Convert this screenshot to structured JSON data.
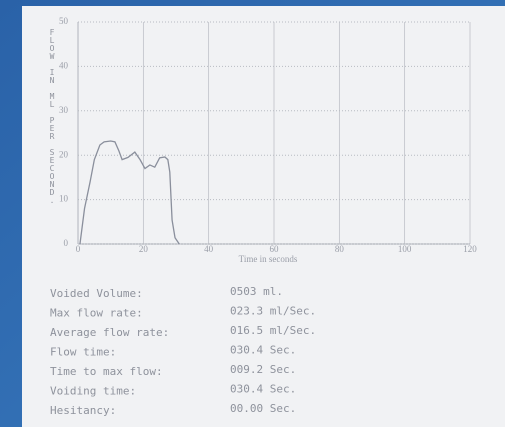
{
  "chart_data": {
    "type": "line",
    "y_label": "FLOW IN ML PER SECOND.",
    "x_label": "Time in seconds",
    "xlim": [
      0,
      120
    ],
    "xticks": [
      0,
      20,
      40,
      60,
      80,
      100,
      120
    ],
    "ylim": [
      0,
      50
    ],
    "yticks": [
      0,
      10,
      20,
      30,
      40,
      50
    ],
    "grid": true,
    "series": [
      {
        "color": "#8a8f9c",
        "x": [
          0.6,
          2,
          3.7,
          5,
          6.7,
          8,
          10,
          11.3,
          12.5,
          13.5,
          15.3,
          17.4,
          19,
          20.5,
          22,
          23.5,
          25,
          26.6,
          27.5,
          28.1,
          28.8,
          29.7,
          31
        ],
        "values": [
          0,
          8,
          14,
          19,
          22.3,
          23,
          23.2,
          23,
          21,
          19,
          19.5,
          20.7,
          19,
          17,
          17.8,
          17.3,
          19.4,
          19.6,
          19,
          16.2,
          5.4,
          1.4,
          0
        ]
      }
    ]
  },
  "results": {
    "rows": [
      [
        "Voided Volume:",
        "0503 ml."
      ],
      [
        "Max flow rate:",
        "023.3 ml/Sec."
      ],
      [
        "Average flow rate:",
        "016.5 ml/Sec."
      ],
      [
        "Flow time:",
        "030.4 Sec."
      ],
      [
        "Time to max flow:",
        "009.2 Sec."
      ],
      [
        "Voiding time:",
        "030.4 Sec."
      ],
      [
        "Hesitancy:",
        "00.00 Sec."
      ]
    ]
  }
}
